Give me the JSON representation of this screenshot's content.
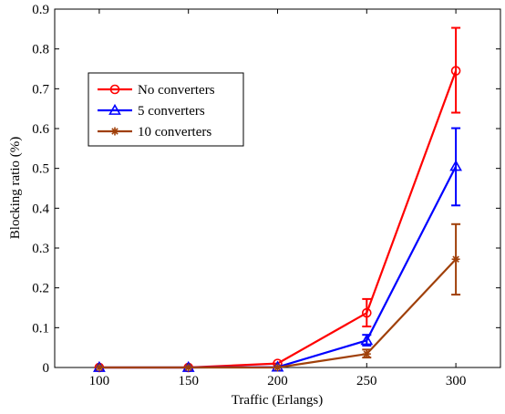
{
  "chart_data": {
    "type": "line",
    "xlabel": "Traffic (Erlangs)",
    "ylabel": "Blocking ratio (%)",
    "xlim": [
      75,
      325
    ],
    "ylim": [
      0,
      0.9
    ],
    "xticks": [
      "100",
      "150",
      "200",
      "250",
      "300"
    ],
    "yticks": [
      "0",
      "0.1",
      "0.2",
      "0.3",
      "0.4",
      "0.5",
      "0.6",
      "0.7",
      "0.8",
      "0.9"
    ],
    "legend_position": "upper-left",
    "grid": false,
    "x": [
      100,
      150,
      200,
      250,
      300
    ],
    "series": [
      {
        "name": "No converters",
        "color": "#ff0000",
        "marker": "circle",
        "values": [
          0,
          0,
          0.01,
          0.137,
          0.745
        ],
        "error_low": [
          null,
          null,
          null,
          0.103,
          0.64
        ],
        "error_high": [
          null,
          null,
          null,
          0.172,
          0.853
        ]
      },
      {
        "name": "5 converters",
        "color": "#0000ff",
        "marker": "triangle",
        "values": [
          0,
          0,
          0.001,
          0.068,
          0.505
        ],
        "error_low": [
          null,
          null,
          null,
          0.055,
          0.407
        ],
        "error_high": [
          null,
          null,
          null,
          0.082,
          0.601
        ]
      },
      {
        "name": "10 converters",
        "color": "#a0400a",
        "marker": "star",
        "values": [
          0,
          0,
          0,
          0.034,
          0.272
        ],
        "error_low": [
          null,
          null,
          null,
          0.025,
          0.183
        ],
        "error_high": [
          null,
          null,
          null,
          0.045,
          0.36
        ]
      }
    ]
  }
}
